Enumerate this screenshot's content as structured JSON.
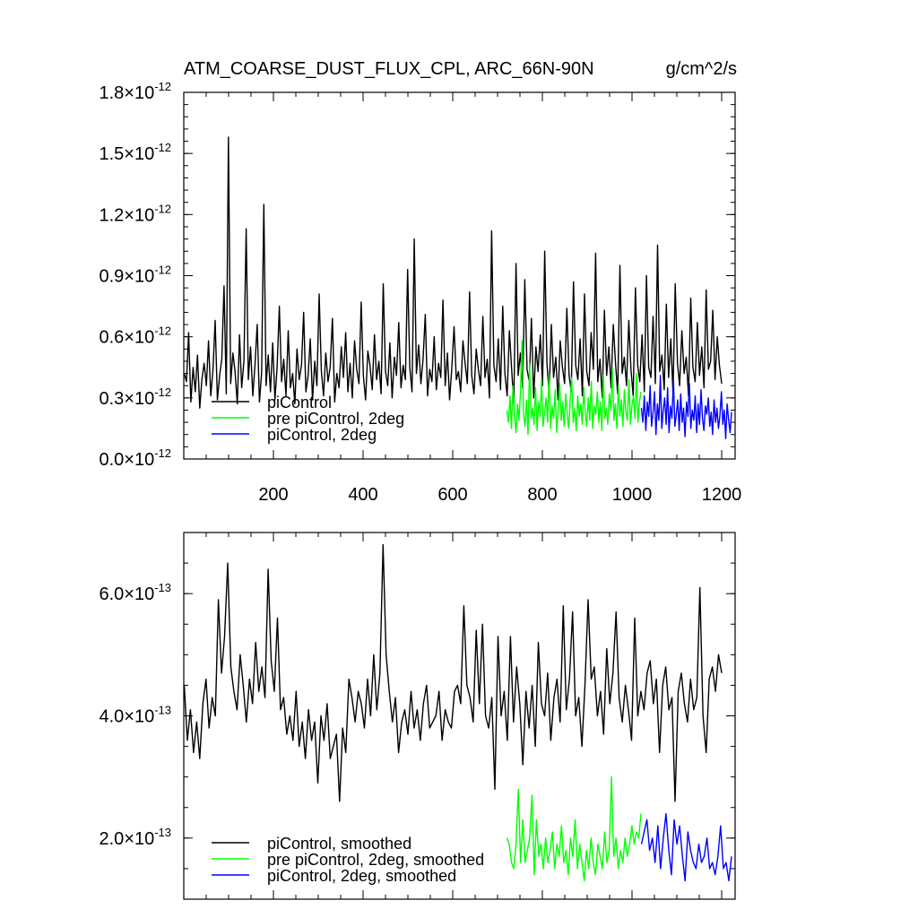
{
  "chart_data": [
    {
      "type": "line",
      "title": "ATM_COARSE_DUST_FLUX_CPL, ARC_66N-90N",
      "units": "g/cm^2/s",
      "xlim": [
        0,
        1230
      ],
      "ylim": [
        0.0,
        1.8
      ],
      "y_exponent": -12,
      "y_ticks": [
        {
          "value": 0.0,
          "mant": "0.0",
          "times": "×10",
          "exp": "-12"
        },
        {
          "value": 0.3,
          "mant": "0.3",
          "times": "×10",
          "exp": "-12"
        },
        {
          "value": 0.6,
          "mant": "0.6",
          "times": "×10",
          "exp": "-12"
        },
        {
          "value": 0.9,
          "mant": "0.9",
          "times": "×10",
          "exp": "-12"
        },
        {
          "value": 1.2,
          "mant": "1.2",
          "times": "×10",
          "exp": "-12"
        },
        {
          "value": 1.5,
          "mant": "1.5",
          "times": "×10",
          "exp": "-12"
        },
        {
          "value": 1.8,
          "mant": "1.8",
          "times": "×10",
          "exp": "-12"
        }
      ],
      "x_ticks": [
        "200",
        "400",
        "600",
        "800",
        "1000",
        "1200"
      ],
      "legend": [
        "piControl",
        "pre piControl, 2deg",
        "piControl, 2deg"
      ],
      "series": [
        {
          "name": "piControl",
          "color": "#000000",
          "x_range": [
            1,
            1200
          ],
          "values": [
            0.42,
            0.38,
            0.62,
            0.28,
            0.45,
            0.33,
            0.51,
            0.25,
            0.39,
            0.47,
            0.36,
            0.58,
            0.31,
            0.44,
            0.68,
            0.29,
            0.41,
            0.49,
            0.85,
            0.32,
            1.58,
            0.37,
            0.52,
            0.43,
            0.27,
            0.61,
            0.35,
            0.48,
            1.13,
            0.39,
            0.55,
            0.31,
            0.46,
            0.66,
            0.28,
            0.42,
            1.25,
            0.36,
            0.51,
            0.33,
            0.57,
            0.29,
            0.45,
            0.75,
            0.38,
            0.49,
            0.31,
            0.63,
            0.35,
            0.42,
            0.27,
            0.54,
            0.39,
            0.46,
            0.72,
            0.33,
            0.41,
            0.59,
            0.29,
            0.48,
            0.36,
            0.81,
            0.43,
            0.31,
            0.52,
            0.38,
            0.45,
            0.69,
            0.28,
            0.42,
            0.35,
            0.55,
            0.4,
            0.62,
            0.33,
            0.47,
            0.3,
            0.58,
            0.44,
            0.37,
            0.77,
            0.41,
            0.29,
            0.53,
            0.46,
            0.34,
            0.61,
            0.39,
            0.48,
            0.32,
            0.86,
            0.43,
            0.36,
            0.57,
            0.3,
            0.5,
            0.41,
            0.67,
            0.35,
            0.46,
            0.39,
            0.93,
            0.45,
            0.33,
            1.08,
            0.42,
            0.56,
            0.37,
            0.49,
            0.71,
            0.31,
            0.44,
            0.38,
            0.6,
            0.34,
            0.47,
            0.4,
            0.78,
            0.36,
            0.52,
            0.29,
            0.45,
            0.65,
            0.39,
            0.43,
            0.33,
            0.58,
            0.47,
            0.37,
            0.82,
            0.41,
            0.32,
            0.54,
            0.44,
            0.36,
            0.7,
            0.4,
            0.49,
            0.3,
            1.12,
            0.46,
            0.38,
            0.59,
            0.34,
            0.75,
            0.42,
            0.31,
            0.63,
            0.45,
            0.27,
            0.96,
            0.41,
            0.52,
            0.35,
            0.88,
            0.44,
            0.38,
            0.69,
            0.3,
            0.55,
            0.43,
            0.61,
            0.36,
            1.02,
            0.47,
            0.32,
            0.66,
            0.4,
            0.5,
            0.29,
            0.58,
            0.45,
            0.37,
            0.74,
            0.41,
            0.33,
            0.87,
            0.46,
            0.39,
            0.59,
            0.31,
            0.81,
            0.43,
            0.36,
            0.62,
            0.44,
            1.01,
            0.38,
            0.49,
            0.3,
            0.73,
            0.41,
            0.55,
            0.35,
            0.66,
            0.47,
            0.32,
            0.95,
            0.42,
            0.5,
            0.36,
            0.68,
            0.44,
            0.31,
            0.84,
            0.46,
            0.38,
            0.61,
            0.33,
            0.9,
            0.45,
            0.4,
            0.7,
            0.37,
            1.05,
            0.43,
            0.51,
            0.34,
            0.76,
            0.4,
            0.59,
            0.32,
            0.86,
            0.47,
            0.36,
            0.63,
            0.42,
            0.5,
            0.31,
            0.79,
            0.45,
            0.38,
            0.67,
            0.41,
            0.55,
            0.35,
            0.83,
            0.44,
            0.48,
            0.73,
            0.39,
            0.6,
            0.46,
            0.37
          ]
        },
        {
          "name": "pre piControl, 2deg",
          "color": "#00ff00",
          "x_range": [
            721,
            1020
          ],
          "values": [
            0.24,
            0.18,
            0.31,
            0.15,
            0.36,
            0.21,
            0.13,
            0.27,
            0.19,
            0.33,
            0.58,
            0.22,
            0.16,
            0.29,
            0.12,
            0.47,
            0.2,
            0.25,
            0.17,
            0.35,
            0.14,
            0.28,
            0.21,
            0.39,
            0.16,
            0.23,
            0.3,
            0.18,
            0.42,
            0.15,
            0.26,
            0.2,
            0.34,
            0.13,
            0.24,
            0.37,
            0.19,
            0.28,
            0.16,
            0.32,
            0.22,
            0.15,
            0.29,
            0.4,
            0.18,
            0.25,
            0.14,
            0.31,
            0.21,
            0.27,
            0.17,
            0.35,
            0.23,
            0.16,
            0.3,
            0.19,
            0.38,
            0.15,
            0.26,
            0.22,
            0.33,
            0.18,
            0.28,
            0.14,
            0.41,
            0.2,
            0.25,
            0.17,
            0.32,
            0.24,
            0.44,
            0.19,
            0.27,
            0.15,
            0.36,
            0.21,
            0.29,
            0.16,
            0.34,
            0.23,
            0.19,
            0.39,
            0.17,
            0.26,
            0.31,
            0.2,
            0.42,
            0.18,
            0.28,
            0.33
          ]
        },
        {
          "name": "piControl, 2deg",
          "color": "#0000ff",
          "x_range": [
            1021,
            1222
          ],
          "values": [
            0.25,
            0.18,
            0.31,
            0.14,
            0.28,
            0.21,
            0.36,
            0.16,
            0.23,
            0.33,
            0.12,
            0.27,
            0.19,
            0.41,
            0.15,
            0.24,
            0.3,
            0.17,
            0.35,
            0.13,
            0.26,
            0.2,
            0.39,
            0.16,
            0.22,
            0.29,
            0.14,
            0.32,
            0.18,
            0.25,
            0.11,
            0.28,
            0.21,
            0.37,
            0.15,
            0.24,
            0.19,
            0.31,
            0.13,
            0.27,
            0.17,
            0.34,
            0.2,
            0.14,
            0.26,
            0.22,
            0.3,
            0.16,
            0.23,
            0.12,
            0.29,
            0.18,
            0.25,
            0.15,
            0.21,
            0.33,
            0.17,
            0.24,
            0.1,
            0.27,
            0.19,
            0.13,
            0.23
          ]
        }
      ]
    },
    {
      "type": "line",
      "xlim": [
        0,
        1230
      ],
      "ylim": [
        1.0,
        7.0
      ],
      "y_exponent": -13,
      "y_ticks": [
        {
          "value": 2.0,
          "mant": "2.0",
          "times": "×10",
          "exp": "-13"
        },
        {
          "value": 4.0,
          "mant": "4.0",
          "times": "×10",
          "exp": "-13"
        },
        {
          "value": 6.0,
          "mant": "6.0",
          "times": "×10",
          "exp": "-13"
        }
      ],
      "legend": [
        "piControl, smoothed",
        "pre piControl, 2deg, smoothed",
        "piControl, 2deg, smoothed"
      ],
      "series": [
        {
          "name": "piControl, smoothed",
          "color": "#000000",
          "x_range": [
            1,
            1200
          ],
          "values": [
            4.5,
            3.6,
            4.1,
            3.4,
            3.9,
            3.3,
            4.2,
            4.6,
            3.8,
            4.3,
            4.0,
            5.9,
            4.7,
            5.3,
            6.5,
            4.8,
            4.4,
            4.1,
            5.0,
            4.5,
            3.9,
            4.6,
            4.2,
            5.2,
            4.4,
            4.8,
            4.3,
            6.4,
            4.9,
            4.4,
            5.6,
            4.1,
            4.3,
            3.7,
            4.0,
            3.6,
            4.4,
            3.5,
            3.9,
            3.3,
            4.1,
            3.6,
            3.9,
            2.9,
            4.0,
            3.6,
            4.2,
            3.3,
            3.5,
            3.7,
            2.6,
            3.8,
            3.4,
            4.6,
            4.3,
            3.9,
            4.4,
            4.2,
            3.8,
            4.6,
            4.0,
            5.0,
            4.1,
            4.7,
            6.8,
            5.0,
            4.4,
            3.9,
            4.3,
            3.4,
            3.9,
            4.1,
            3.7,
            4.4,
            3.8,
            4.1,
            3.6,
            4.2,
            4.5,
            3.8,
            3.9,
            4.0,
            4.4,
            3.6,
            4.1,
            3.9,
            3.8,
            4.4,
            4.5,
            4.2,
            5.8,
            4.5,
            4.3,
            3.9,
            5.4,
            4.2,
            5.5,
            4.0,
            3.8,
            4.3,
            2.8,
            5.3,
            4.0,
            4.4,
            3.6,
            5.3,
            3.9,
            4.8,
            4.2,
            3.2,
            4.4,
            3.8,
            4.5,
            3.5,
            5.2,
            4.2,
            4.0,
            4.7,
            3.6,
            4.3,
            4.6,
            3.9,
            5.8,
            4.1,
            4.6,
            5.7,
            4.0,
            4.3,
            3.5,
            4.5,
            5.9,
            4.6,
            4.8,
            4.0,
            4.4,
            3.7,
            5.1,
            4.2,
            4.7,
            5.7,
            4.3,
            3.9,
            4.5,
            4.1,
            3.6,
            5.6,
            4.0,
            4.4,
            4.1,
            4.7,
            4.9,
            4.2,
            4.6,
            3.4,
            4.5,
            4.8,
            4.1,
            4.3,
            2.6,
            4.4,
            4.7,
            4.2,
            3.9,
            4.6,
            4.1,
            4.3,
            6.1,
            4.0,
            3.4,
            4.6,
            4.8,
            4.4,
            5.0,
            4.7
          ]
        },
        {
          "name": "pre piControl, 2deg, smoothed",
          "color": "#00ff00",
          "x_range": [
            721,
            1020
          ],
          "values": [
            2.0,
            1.9,
            1.6,
            1.5,
            1.9,
            2.8,
            1.6,
            2.3,
            1.6,
            1.8,
            2.0,
            2.7,
            1.4,
            2.3,
            1.7,
            1.9,
            1.5,
            2.0,
            1.6,
            1.8,
            2.1,
            1.5,
            1.9,
            1.7,
            2.2,
            1.6,
            1.8,
            1.4,
            2.0,
            1.7,
            2.3,
            1.5,
            1.9,
            1.6,
            1.3,
            1.8,
            1.5,
            2.0,
            1.6,
            1.4,
            1.9,
            1.7,
            1.5,
            2.1,
            1.6,
            1.8,
            3.0,
            1.7,
            2.0,
            1.5,
            1.8,
            1.6,
            2.0,
            1.7,
            1.9,
            2.2,
            1.9,
            2.1,
            2.0,
            2.4
          ]
        },
        {
          "name": "piControl, 2deg, smoothed",
          "color": "#0000ff",
          "x_range": [
            1021,
            1222
          ],
          "values": [
            1.9,
            2.1,
            2.3,
            1.8,
            2.0,
            1.6,
            2.2,
            1.5,
            2.0,
            2.4,
            1.8,
            1.4,
            2.3,
            1.9,
            2.2,
            1.7,
            1.3,
            2.1,
            1.8,
            1.6,
            1.5,
            1.9,
            1.6,
            1.7,
            2.0,
            1.5,
            1.6,
            1.4,
            1.7,
            2.2,
            1.5,
            1.6,
            1.3,
            1.7
          ]
        }
      ]
    }
  ]
}
